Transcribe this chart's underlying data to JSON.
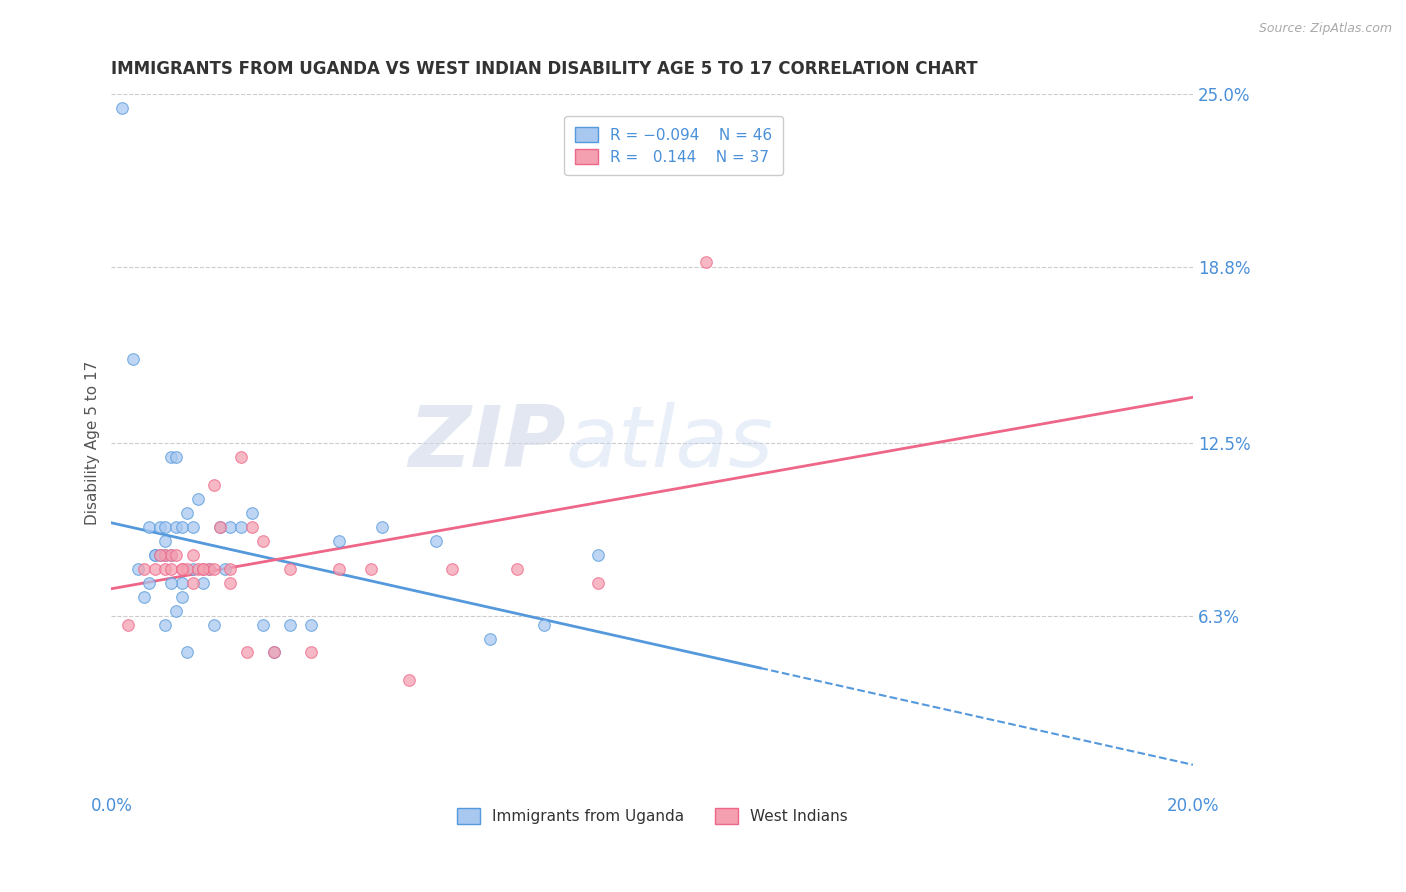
{
  "title": "IMMIGRANTS FROM UGANDA VS WEST INDIAN DISABILITY AGE 5 TO 17 CORRELATION CHART",
  "source": "Source: ZipAtlas.com",
  "ylabel": "Disability Age 5 to 17",
  "xlim": [
    0.0,
    0.2
  ],
  "ylim": [
    0.0,
    0.25
  ],
  "xtick_labels": [
    "0.0%",
    "20.0%"
  ],
  "ytick_labels": [
    "25.0%",
    "18.8%",
    "12.5%",
    "6.3%"
  ],
  "ytick_values": [
    0.25,
    0.188,
    0.125,
    0.063
  ],
  "color_uganda": "#a8c8f0",
  "color_west_indian": "#f4a0b0",
  "color_line_uganda": "#5599dd",
  "color_line_west_indian": "#ee6688",
  "color_axis_labels": "#4a90d9",
  "color_title": "#333333",
  "watermark_zip": "ZIP",
  "watermark_atlas": "atlas",
  "uganda_x": [
    0.002,
    0.004,
    0.005,
    0.006,
    0.007,
    0.007,
    0.008,
    0.008,
    0.009,
    0.009,
    0.01,
    0.01,
    0.01,
    0.011,
    0.011,
    0.012,
    0.012,
    0.013,
    0.013,
    0.014,
    0.015,
    0.015,
    0.016,
    0.017,
    0.018,
    0.019,
    0.02,
    0.021,
    0.022,
    0.024,
    0.026,
    0.028,
    0.03,
    0.033,
    0.037,
    0.042,
    0.05,
    0.06,
    0.07,
    0.08,
    0.09,
    0.01,
    0.011,
    0.012,
    0.013,
    0.014
  ],
  "uganda_y": [
    0.245,
    0.155,
    0.08,
    0.07,
    0.095,
    0.075,
    0.085,
    0.085,
    0.095,
    0.085,
    0.085,
    0.09,
    0.095,
    0.085,
    0.12,
    0.12,
    0.095,
    0.095,
    0.075,
    0.1,
    0.08,
    0.095,
    0.105,
    0.075,
    0.08,
    0.06,
    0.095,
    0.08,
    0.095,
    0.095,
    0.1,
    0.06,
    0.05,
    0.06,
    0.06,
    0.09,
    0.095,
    0.09,
    0.055,
    0.06,
    0.085,
    0.06,
    0.075,
    0.065,
    0.07,
    0.05
  ],
  "west_indian_x": [
    0.003,
    0.006,
    0.008,
    0.01,
    0.011,
    0.012,
    0.013,
    0.014,
    0.015,
    0.016,
    0.017,
    0.018,
    0.019,
    0.02,
    0.022,
    0.024,
    0.026,
    0.028,
    0.03,
    0.033,
    0.037,
    0.042,
    0.048,
    0.055,
    0.063,
    0.075,
    0.09,
    0.009,
    0.01,
    0.011,
    0.013,
    0.015,
    0.017,
    0.019,
    0.022,
    0.025,
    0.11
  ],
  "west_indian_y": [
    0.06,
    0.08,
    0.08,
    0.085,
    0.085,
    0.085,
    0.08,
    0.08,
    0.085,
    0.08,
    0.08,
    0.08,
    0.11,
    0.095,
    0.08,
    0.12,
    0.095,
    0.09,
    0.05,
    0.08,
    0.05,
    0.08,
    0.08,
    0.04,
    0.08,
    0.08,
    0.075,
    0.085,
    0.08,
    0.08,
    0.08,
    0.075,
    0.08,
    0.08,
    0.075,
    0.05,
    0.19
  ]
}
